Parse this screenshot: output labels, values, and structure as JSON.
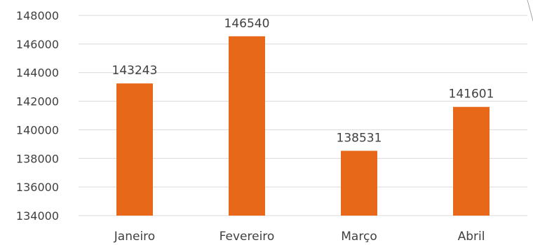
{
  "chart_data": {
    "type": "bar",
    "title": "",
    "xlabel": "",
    "ylabel": "",
    "categories": [
      "Janeiro",
      "Fevereiro",
      "Março",
      "Abril"
    ],
    "values": [
      143243,
      146540,
      138531,
      141601
    ],
    "data_labels": [
      "143243",
      "146540",
      "138531",
      "141601"
    ],
    "ylim": [
      134000,
      148000
    ],
    "yticks": [
      134000,
      136000,
      138000,
      140000,
      142000,
      144000,
      146000,
      148000
    ],
    "ytick_labels": [
      "134000",
      "136000",
      "138000",
      "140000",
      "142000",
      "144000",
      "146000",
      "148000"
    ],
    "grid": true,
    "legend": "none",
    "colors": {
      "bar": "#E8681A",
      "grid": "#d9d9d9",
      "text": "#404040",
      "frame_line": "#a6a6a6"
    }
  }
}
